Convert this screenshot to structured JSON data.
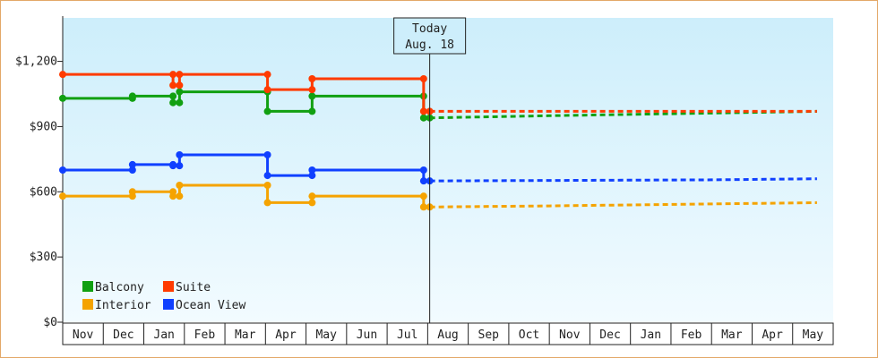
{
  "chart_data": {
    "type": "line",
    "step": true,
    "y_ticks": [
      "$0",
      "$300",
      "$600",
      "$900",
      "$1,200"
    ],
    "y_tick_values": [
      0,
      300,
      600,
      900,
      1200
    ],
    "ylim": [
      0,
      1400
    ],
    "x_months": [
      "Nov",
      "Dec",
      "Jan",
      "Feb",
      "Mar",
      "Apr",
      "May",
      "Jun",
      "Jul",
      "Aug",
      "Sep",
      "Oct",
      "Nov",
      "Dec",
      "Jan",
      "Feb",
      "Mar",
      "Apr",
      "May"
    ],
    "today": {
      "line1": "Today",
      "line2": "Aug. 18",
      "month_offset": 9.05
    },
    "grid": false,
    "legend_position": "bottom-left",
    "colors": {
      "Balcony": "#11a011",
      "Suite": "#ff3b00",
      "Interior": "#f5a300",
      "Ocean View": "#1040ff",
      "background_top": "#cdeefb",
      "background_bottom": "#f2fbff"
    },
    "series": [
      {
        "name": "Balcony",
        "history": [
          [
            0,
            1030
          ],
          [
            1.72,
            1030
          ],
          [
            1.72,
            1040
          ],
          [
            2.72,
            1040
          ],
          [
            2.72,
            1010
          ],
          [
            2.88,
            1010
          ],
          [
            2.88,
            1060
          ],
          [
            5.05,
            1060
          ],
          [
            5.05,
            970
          ],
          [
            6.15,
            970
          ],
          [
            6.15,
            1040
          ],
          [
            8.9,
            1040
          ],
          [
            8.9,
            940
          ],
          [
            9.05,
            940
          ]
        ],
        "forecast": [
          [
            9.05,
            940
          ],
          [
            12,
            950
          ],
          [
            18.6,
            970
          ]
        ]
      },
      {
        "name": "Suite",
        "history": [
          [
            0,
            1140
          ],
          [
            2.72,
            1140
          ],
          [
            2.72,
            1090
          ],
          [
            2.88,
            1090
          ],
          [
            2.88,
            1140
          ],
          [
            5.05,
            1140
          ],
          [
            5.05,
            1070
          ],
          [
            6.15,
            1070
          ],
          [
            6.15,
            1120
          ],
          [
            8.9,
            1120
          ],
          [
            8.9,
            970
          ],
          [
            9.05,
            970
          ]
        ],
        "forecast": [
          [
            9.05,
            970
          ],
          [
            18.6,
            970
          ]
        ]
      },
      {
        "name": "Interior",
        "history": [
          [
            0,
            580
          ],
          [
            1.72,
            580
          ],
          [
            1.72,
            600
          ],
          [
            2.72,
            600
          ],
          [
            2.72,
            580
          ],
          [
            2.88,
            580
          ],
          [
            2.88,
            630
          ],
          [
            5.05,
            630
          ],
          [
            5.05,
            550
          ],
          [
            6.15,
            550
          ],
          [
            6.15,
            580
          ],
          [
            8.9,
            580
          ],
          [
            8.9,
            530
          ],
          [
            9.05,
            530
          ]
        ],
        "forecast": [
          [
            9.05,
            530
          ],
          [
            12,
            535
          ],
          [
            18.6,
            550
          ]
        ]
      },
      {
        "name": "Ocean View",
        "history": [
          [
            0,
            700
          ],
          [
            1.72,
            700
          ],
          [
            1.72,
            725
          ],
          [
            2.72,
            725
          ],
          [
            2.72,
            720
          ],
          [
            2.88,
            720
          ],
          [
            2.88,
            770
          ],
          [
            5.05,
            770
          ],
          [
            5.05,
            675
          ],
          [
            6.15,
            675
          ],
          [
            6.15,
            700
          ],
          [
            8.9,
            700
          ],
          [
            8.9,
            650
          ],
          [
            9.05,
            650
          ]
        ],
        "forecast": [
          [
            9.05,
            650
          ],
          [
            16,
            655
          ],
          [
            18.6,
            660
          ]
        ]
      }
    ],
    "legend": [
      {
        "label": "Balcony",
        "color": "#11a011"
      },
      {
        "label": "Suite",
        "color": "#ff3b00"
      },
      {
        "label": "Interior",
        "color": "#f5a300"
      },
      {
        "label": "Ocean View",
        "color": "#1040ff"
      }
    ]
  }
}
